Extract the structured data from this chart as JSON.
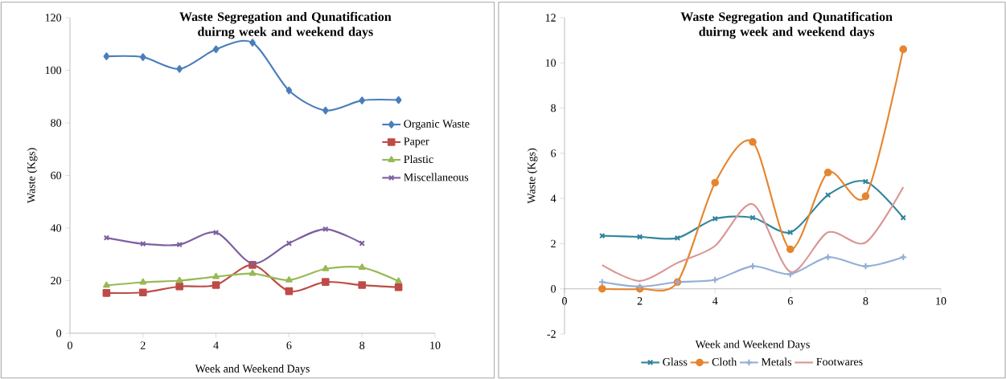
{
  "chart_data": [
    {
      "type": "line",
      "title": "Waste Segregation and Qunatification duirng week and weekend days",
      "xlabel": "Week and Weekend Days",
      "ylabel": "Waste (Kgs)",
      "x": [
        1,
        2,
        3,
        4,
        5,
        6,
        7,
        8,
        9
      ],
      "xlim": [
        0,
        10
      ],
      "xticks": [
        0,
        2,
        4,
        6,
        8,
        10
      ],
      "ylim": [
        0,
        120
      ],
      "yticks": [
        0,
        20,
        40,
        60,
        80,
        100,
        120
      ],
      "legend": "right",
      "series": [
        {
          "name": "Organic Waste",
          "color": "#4a7ebb",
          "marker": "diamond",
          "values": [
            105.3,
            105,
            100.5,
            108,
            110.5,
            92.3,
            84.7,
            88.5,
            88.7
          ]
        },
        {
          "name": "Paper",
          "color": "#be4b48",
          "marker": "square",
          "values": [
            15.3,
            15.5,
            17.8,
            18.3,
            26,
            16,
            19.5,
            18.3,
            17.5
          ]
        },
        {
          "name": "Plastic",
          "color": "#98b954",
          "marker": "triangle",
          "values": [
            18.2,
            19.4,
            20,
            21.5,
            22.7,
            20.2,
            24.5,
            25,
            19.8
          ]
        },
        {
          "name": "Miscellaneous",
          "color": "#7d60a0",
          "marker": "cross",
          "values": [
            36.3,
            34,
            33.7,
            38.3,
            26.5,
            34.2,
            39.6,
            34.2,
            null
          ]
        }
      ]
    },
    {
      "type": "line",
      "title": "Waste Segregation and Qunatification duirng week and weekend days",
      "xlabel": "Week and Weekend Days",
      "ylabel": "Waste (Kgs)",
      "x": [
        1,
        2,
        3,
        4,
        5,
        6,
        7,
        8,
        9
      ],
      "xlim": [
        0,
        10
      ],
      "xticks": [
        0,
        2,
        4,
        6,
        8,
        10
      ],
      "ylim": [
        -2,
        12
      ],
      "yticks": [
        -2,
        0,
        2,
        4,
        6,
        8,
        10,
        12
      ],
      "legend": "bottom",
      "series": [
        {
          "name": "Glass",
          "color": "#31859c",
          "marker": "cross",
          "values": [
            2.35,
            2.3,
            2.25,
            3.1,
            3.15,
            2.5,
            4.15,
            4.75,
            3.15
          ]
        },
        {
          "name": "Cloth",
          "color": "#e6852e",
          "marker": "circle",
          "values": [
            0,
            0,
            0.3,
            4.7,
            6.5,
            1.75,
            5.15,
            4.1,
            10.6
          ]
        },
        {
          "name": "Metals",
          "color": "#94aed6",
          "marker": "plus",
          "values": [
            0.3,
            0.1,
            0.3,
            0.4,
            1.0,
            0.65,
            1.4,
            1.0,
            1.4
          ]
        },
        {
          "name": "Footwares",
          "color": "#d99694",
          "marker": "none",
          "values": [
            1.05,
            0.35,
            1.15,
            1.9,
            3.75,
            0.75,
            2.5,
            2.05,
            4.5
          ]
        }
      ]
    }
  ]
}
